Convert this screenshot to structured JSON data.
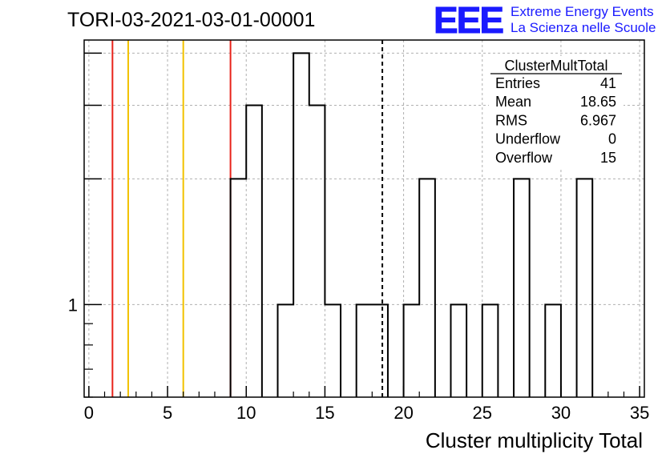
{
  "chart_data": {
    "type": "histogram",
    "title": "TORI-03-2021-03-01-00001",
    "xlabel": "Cluster multiplicity Total",
    "ylabel": "",
    "xlim": [
      -0.3,
      35.3
    ],
    "ylim": [
      0.6,
      4.3
    ],
    "log_y": true,
    "grid": true,
    "x_ticks": [
      0,
      5,
      10,
      15,
      20,
      25,
      30,
      35
    ],
    "y_tick_labels": [
      {
        "value": 1,
        "label": "1"
      }
    ],
    "bins": [
      {
        "low": 9,
        "high": 10,
        "count": 2
      },
      {
        "low": 10,
        "high": 11,
        "count": 3
      },
      {
        "low": 12,
        "high": 13,
        "count": 1
      },
      {
        "low": 13,
        "high": 14,
        "count": 4
      },
      {
        "low": 14,
        "high": 15,
        "count": 3
      },
      {
        "low": 15,
        "high": 16,
        "count": 1
      },
      {
        "low": 17,
        "high": 18,
        "count": 1
      },
      {
        "low": 18,
        "high": 19,
        "count": 1
      },
      {
        "low": 20,
        "high": 21,
        "count": 1
      },
      {
        "low": 21,
        "high": 22,
        "count": 2
      },
      {
        "low": 23,
        "high": 24,
        "count": 1
      },
      {
        "low": 25,
        "high": 26,
        "count": 1
      },
      {
        "low": 27,
        "high": 28,
        "count": 2
      },
      {
        "low": 29,
        "high": 30,
        "count": 1
      },
      {
        "low": 31,
        "high": 32,
        "count": 2
      }
    ],
    "vertical_lines": [
      {
        "x": 1.5,
        "color": "#e8221a",
        "style": "solid"
      },
      {
        "x": 2.5,
        "color": "#f2c200",
        "style": "solid"
      },
      {
        "x": 6,
        "color": "#f2c200",
        "style": "solid"
      },
      {
        "x": 9,
        "color": "#e8221a",
        "style": "solid"
      },
      {
        "x": 18.65,
        "color": "#000000",
        "style": "dashed"
      }
    ],
    "stats_box": {
      "name": "ClusterMultTotal",
      "rows": [
        {
          "label": "Entries",
          "value": "41"
        },
        {
          "label": "Mean",
          "value": "18.65"
        },
        {
          "label": "RMS",
          "value": "6.967"
        },
        {
          "label": "Underflow",
          "value": "0"
        },
        {
          "label": "Overflow",
          "value": "15"
        }
      ]
    }
  },
  "logo": {
    "mark": "EEE",
    "line1": "Extreme Energy Events",
    "line2": "La Scienza nelle Scuole",
    "color": "#1a1aff"
  }
}
